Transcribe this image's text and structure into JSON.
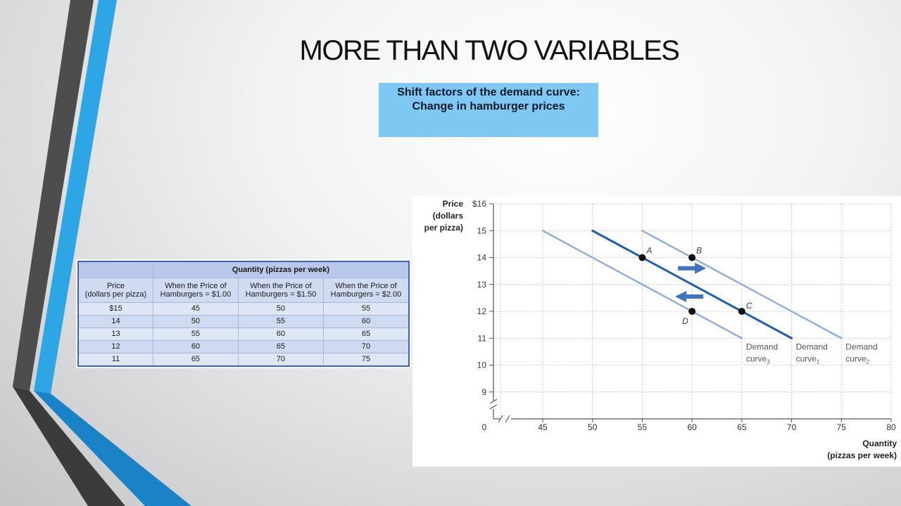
{
  "title": "MORE THAN TWO VARIABLES",
  "caption": "Shift factors of the demand curve: Change in hamburger prices",
  "table": {
    "group_header": "Quantity (pizzas per week)",
    "col_headers": [
      {
        "line1": "Price",
        "line2": "(dollars per pizza)"
      },
      {
        "line1": "When the Price of",
        "line2": "Hamburgers = $1.00"
      },
      {
        "line1": "When the Price of",
        "line2": "Hamburgers = $1.50"
      },
      {
        "line1": "When the Price of",
        "line2": "Hamburgers = $2.00"
      }
    ],
    "rows": [
      [
        "$15",
        "45",
        "50",
        "55"
      ],
      [
        "14",
        "50",
        "55",
        "60"
      ],
      [
        "13",
        "55",
        "60",
        "65"
      ],
      [
        "12",
        "60",
        "65",
        "70"
      ],
      [
        "11",
        "65",
        "70",
        "75"
      ]
    ]
  },
  "chart_data": {
    "type": "line",
    "ylabel": [
      "Price",
      "(dollars",
      "per pizza)"
    ],
    "xlabel": [
      "Quantity",
      "(pizzas per week)"
    ],
    "xticks": [
      "0",
      "45",
      "50",
      "55",
      "60",
      "65",
      "70",
      "75",
      "80"
    ],
    "yticks": [
      "$16",
      "15",
      "14",
      "13",
      "12",
      "11",
      "10",
      "9"
    ],
    "xlim": [
      40,
      80
    ],
    "ylim": [
      8,
      16
    ],
    "axis_break": true,
    "grid": true,
    "series": [
      {
        "key": "curve3",
        "label_top": "Demand",
        "label_bot": "curve",
        "sub": "3",
        "color": "#8fb0de",
        "width": 2.5,
        "points": [
          [
            45,
            15
          ],
          [
            65,
            11
          ]
        ]
      },
      {
        "key": "curve1",
        "label_top": "Demand",
        "label_bot": "curve",
        "sub": "1",
        "color": "#1f5fae",
        "width": 3,
        "points": [
          [
            50,
            15
          ],
          [
            70,
            11
          ]
        ]
      },
      {
        "key": "curve2",
        "label_top": "Demand",
        "label_bot": "curve",
        "sub": "2",
        "color": "#8fb0de",
        "width": 2.5,
        "points": [
          [
            55,
            15
          ],
          [
            75,
            11
          ]
        ]
      }
    ],
    "points": [
      {
        "label": "A",
        "x": 55,
        "y": 14
      },
      {
        "label": "B",
        "x": 60,
        "y": 14
      },
      {
        "label": "C",
        "x": 65,
        "y": 12
      },
      {
        "label": "D",
        "x": 60,
        "y": 12
      }
    ],
    "arrows": [
      {
        "direction": "right",
        "x": 60,
        "y": 13.6
      },
      {
        "direction": "left",
        "x": 60,
        "y": 12.55
      }
    ],
    "accent_color": "#3f73c0"
  }
}
